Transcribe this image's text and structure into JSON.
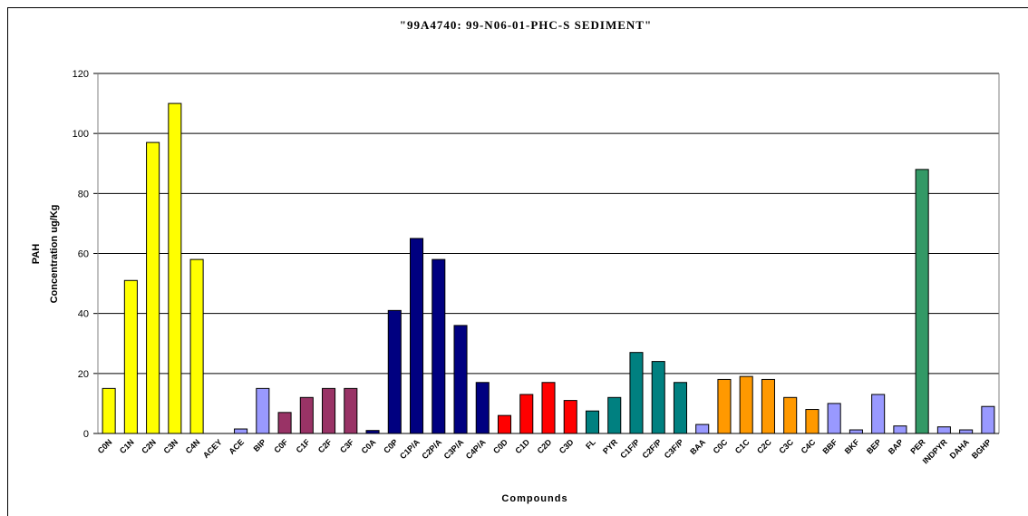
{
  "chart_data": {
    "type": "bar",
    "title": "\"99A4740: 99-N06-01-PHC-S SEDIMENT\"",
    "x_label": "Compounds",
    "y_label": [
      "PAH",
      "Concentration ug/Kg"
    ],
    "categories": [
      "C0N",
      "C1N",
      "C2N",
      "C3N",
      "C4N",
      "ACEY",
      "ACE",
      "BIP",
      "C0F",
      "C1F",
      "C2F",
      "C3F",
      "C0A",
      "C0P",
      "C1P/A",
      "C2P/A",
      "C3P/A",
      "C4P/A",
      "C0D",
      "C1D",
      "C2D",
      "C3D",
      "FL",
      "PYR",
      "C1F/P",
      "C2F/P",
      "C3F/P",
      "BAA",
      "C0C",
      "C1C",
      "C2C",
      "C3C",
      "C4C",
      "BBF",
      "BKF",
      "BEP",
      "BAP",
      "PER",
      "INDPYR",
      "DAHA",
      "BGHP"
    ],
    "values": [
      15,
      51,
      97,
      110,
      58,
      0,
      1.5,
      15,
      7,
      12,
      15,
      15,
      1,
      41,
      65,
      58,
      36,
      17,
      6,
      13,
      17,
      11,
      7.5,
      12,
      27,
      24,
      17,
      3,
      18,
      19,
      18,
      12,
      8,
      10,
      1.2,
      13,
      2.5,
      88,
      2.2,
      1.2,
      9
    ],
    "colors": [
      "#ffff00",
      "#ffff00",
      "#ffff00",
      "#ffff00",
      "#ffff00",
      "#9999ff",
      "#9999ff",
      "#9999ff",
      "#993366",
      "#993366",
      "#993366",
      "#993366",
      "#000080",
      "#000080",
      "#000080",
      "#000080",
      "#000080",
      "#000080",
      "#ff0000",
      "#ff0000",
      "#ff0000",
      "#ff0000",
      "#008080",
      "#008080",
      "#008080",
      "#008080",
      "#008080",
      "#9999ff",
      "#ff9900",
      "#ff9900",
      "#ff9900",
      "#ff9900",
      "#ff9900",
      "#9999ff",
      "#9999ff",
      "#9999ff",
      "#9999ff",
      "#339966",
      "#9999ff",
      "#9999ff",
      "#9999ff"
    ],
    "ylim": [
      0,
      120
    ],
    "yticks": [
      0,
      20,
      40,
      60,
      80,
      100,
      120
    ],
    "grid": true
  }
}
